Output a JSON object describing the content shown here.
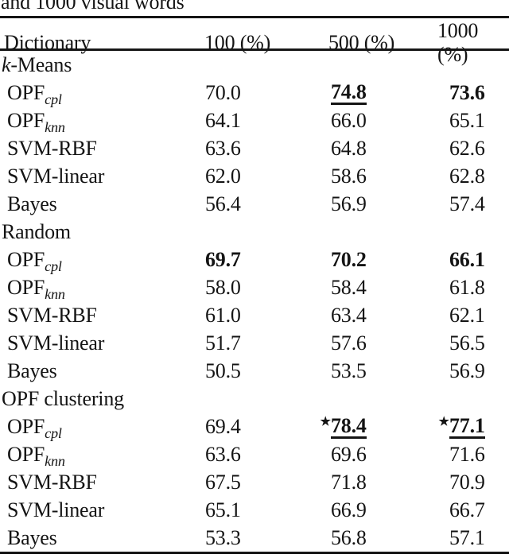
{
  "caption_partial": "and 1000 visual words",
  "star_symbol": "★",
  "colors": {
    "text": "#141414",
    "background": "#ffffff",
    "rule": "#161616"
  },
  "header": {
    "dictionary": "Dictionary",
    "col_100": "100 (%)",
    "col_500": "500 (%)",
    "col_1000": "1000 (%)"
  },
  "table": {
    "sections": [
      {
        "title_italic": "k",
        "title_rest": "-Means",
        "rows": [
          {
            "label_base": "OPF",
            "label_sub": "cpl",
            "v100": "70.0",
            "v500": "74.8",
            "v1000": "73.6"
          },
          {
            "label_base": "OPF",
            "label_sub": "knn",
            "v100": "64.1",
            "v500": "66.0",
            "v1000": "65.1"
          },
          {
            "label": "SVM-RBF",
            "v100": "63.6",
            "v500": "64.8",
            "v1000": "62.6"
          },
          {
            "label": "SVM-linear",
            "v100": "62.0",
            "v500": "58.6",
            "v1000": "62.8"
          },
          {
            "label": "Bayes",
            "v100": "56.4",
            "v500": "56.9",
            "v1000": "57.4"
          }
        ]
      },
      {
        "title": "Random",
        "rows": [
          {
            "label_base": "OPF",
            "label_sub": "cpl",
            "v100": "69.7",
            "v500": "70.2",
            "v1000": "66.1"
          },
          {
            "label_base": "OPF",
            "label_sub": "knn",
            "v100": "58.0",
            "v500": "58.4",
            "v1000": "61.8"
          },
          {
            "label": "SVM-RBF",
            "v100": "61.0",
            "v500": "63.4",
            "v1000": "62.1"
          },
          {
            "label": "SVM-linear",
            "v100": "51.7",
            "v500": "57.6",
            "v1000": "56.5"
          },
          {
            "label": "Bayes",
            "v100": "50.5",
            "v500": "53.5",
            "v1000": "56.9"
          }
        ]
      },
      {
        "title": "OPF clustering",
        "rows": [
          {
            "label_base": "OPF",
            "label_sub": "cpl",
            "v100": "69.4",
            "v500": "78.4",
            "v1000": "77.1"
          },
          {
            "label_base": "OPF",
            "label_sub": "knn",
            "v100": "63.6",
            "v500": "69.6",
            "v1000": "71.6"
          },
          {
            "label": "SVM-RBF",
            "v100": "67.5",
            "v500": "71.8",
            "v1000": "70.9"
          },
          {
            "label": "SVM-linear",
            "v100": "65.1",
            "v500": "66.9",
            "v1000": "66.7"
          },
          {
            "label": "Bayes",
            "v100": "53.3",
            "v500": "56.8",
            "v1000": "57.1"
          }
        ]
      }
    ]
  }
}
